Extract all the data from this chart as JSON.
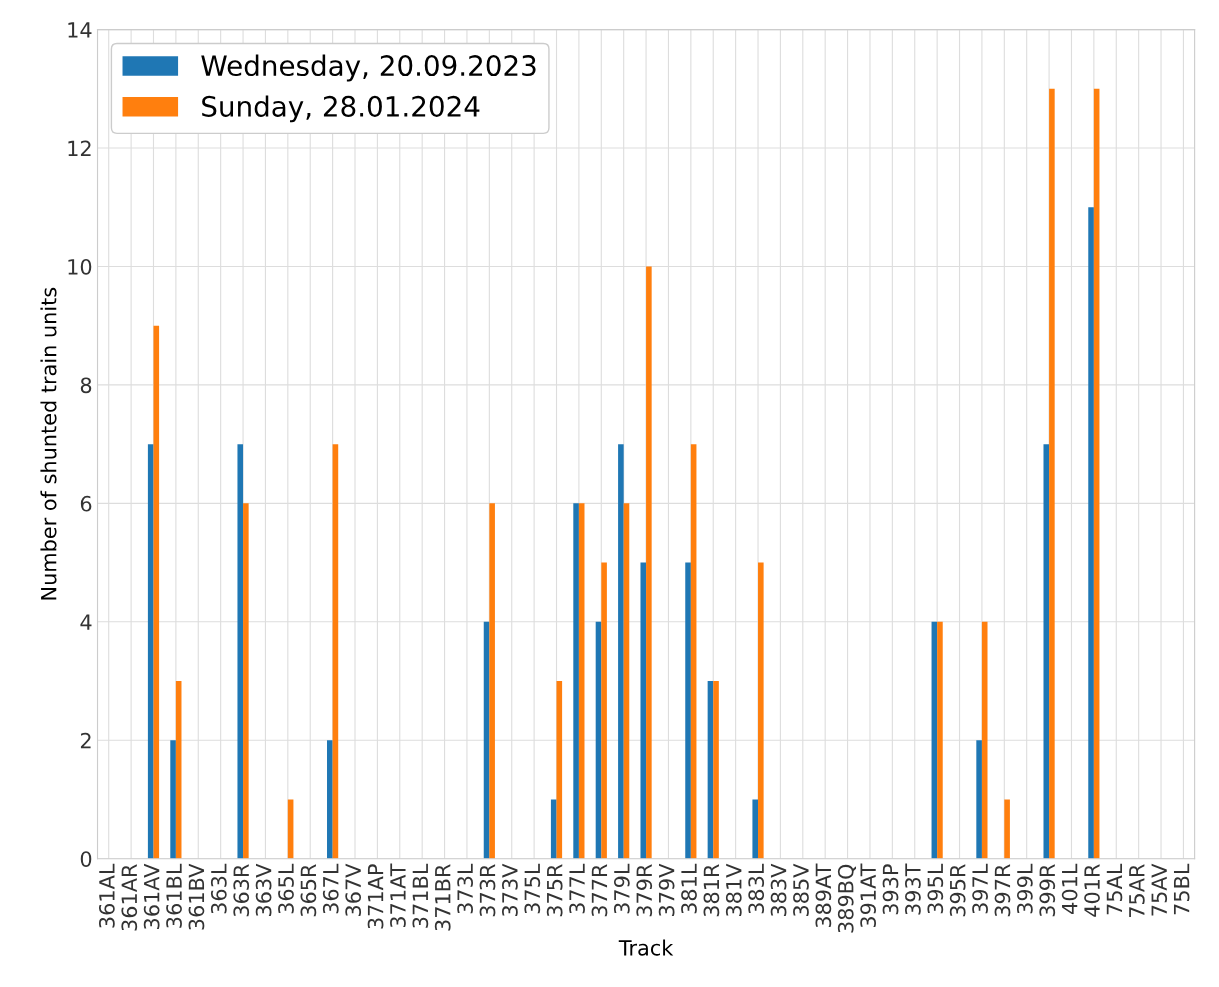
{
  "chart_data": {
    "type": "bar",
    "xlabel": "Track",
    "ylabel": "Number of shunted train units",
    "categories": [
      "361AL",
      "361AR",
      "361AV",
      "361BL",
      "361BV",
      "363L",
      "363R",
      "363V",
      "365L",
      "365R",
      "367L",
      "367V",
      "371AP",
      "371AT",
      "371BL",
      "371BR",
      "373L",
      "373R",
      "373V",
      "375L",
      "375R",
      "377L",
      "377R",
      "379L",
      "379R",
      "379V",
      "381L",
      "381R",
      "381V",
      "383L",
      "383V",
      "385V",
      "389AT",
      "389BQ",
      "391AT",
      "393P",
      "393T",
      "395L",
      "395R",
      "397L",
      "397R",
      "399L",
      "399R",
      "401L",
      "401R",
      "75AL",
      "75AR",
      "75AV",
      "75BL"
    ],
    "series": [
      {
        "name": "Wednesday, 20.09.2023",
        "color": "#1f77b4",
        "values": [
          0,
          0,
          7,
          2,
          0,
          0,
          7,
          0,
          0,
          0,
          2,
          0,
          0,
          0,
          0,
          0,
          0,
          4,
          0,
          0,
          1,
          6,
          4,
          7,
          5,
          0,
          5,
          3,
          0,
          1,
          0,
          0,
          0,
          0,
          0,
          0,
          0,
          4,
          0,
          2,
          0,
          0,
          7,
          0,
          11,
          0,
          0,
          0,
          0
        ]
      },
      {
        "name": "Sunday, 28.01.2024",
        "color": "#ff7f0e",
        "values": [
          0,
          0,
          9,
          3,
          0,
          0,
          6,
          0,
          1,
          0,
          7,
          0,
          0,
          0,
          0,
          0,
          0,
          6,
          0,
          0,
          3,
          6,
          5,
          6,
          10,
          0,
          7,
          3,
          0,
          5,
          0,
          0,
          0,
          0,
          0,
          0,
          0,
          4,
          0,
          4,
          1,
          0,
          13,
          0,
          13,
          0,
          0,
          0,
          0
        ]
      }
    ],
    "ylim": [
      0,
      14
    ],
    "yticks": [
      0,
      2,
      4,
      6,
      8,
      10,
      12,
      14
    ],
    "grid": true,
    "legend": "top left"
  }
}
